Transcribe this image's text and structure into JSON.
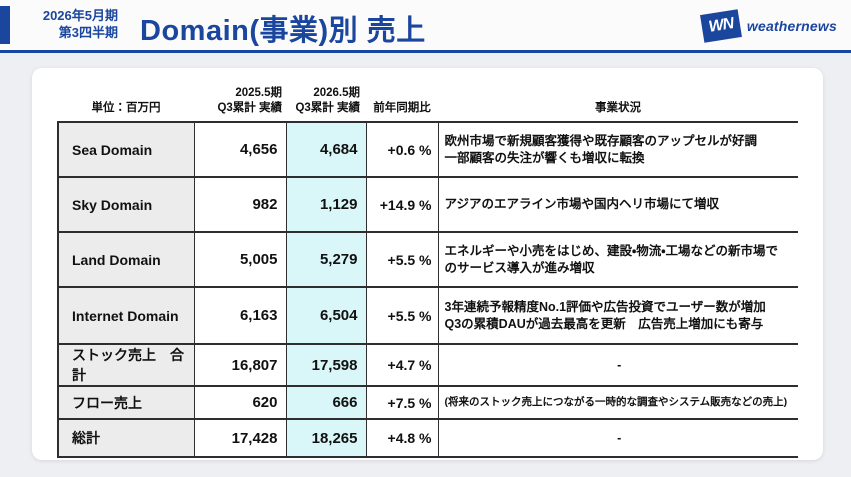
{
  "header": {
    "period_line1": "2026年5月期",
    "period_line2": "第3四半期",
    "title": "Domain(事業)別 売上",
    "logo_mark": "WN",
    "logo_text": "weathernews",
    "accent_color": "#1a469e"
  },
  "table": {
    "unit_label": "単位：百万円",
    "col_2025": "2025.5期\nQ3累計 実績",
    "col_2026": "2026.5期\nQ3累計 実績",
    "col_yoy": "前年同期比",
    "col_status": "事業状況",
    "highlight_color": "#d9f6f9",
    "rows": [
      {
        "label": "Sea Domain",
        "y2025": "4,656",
        "y2026": "4,684",
        "yoy": "+0.6 %",
        "status": "欧州市場で新規顧客獲得や既存顧客のアップセルが好調\n一部顧客の失注が響くも増収に転換"
      },
      {
        "label": "Sky Domain",
        "y2025": "982",
        "y2026": "1,129",
        "yoy": "+14.9 %",
        "status": "アジアのエアライン市場や国内ヘリ市場にて増収"
      },
      {
        "label": "Land Domain",
        "y2025": "5,005",
        "y2026": "5,279",
        "yoy": "+5.5 %",
        "status": "エネルギーや小売をはじめ、建設・物流・工場などの新市場で\nのサービス導入が進み増収"
      },
      {
        "label": "Internet Domain",
        "y2025": "6,163",
        "y2026": "6,504",
        "yoy": "+5.5 %",
        "status": "3年連続予報精度No.1評価や広告投資でユーザー数が増加\nQ3の累積DAUが過去最高を更新　広告売上増加にも寄与"
      },
      {
        "label": "ストック売上　合計",
        "y2025": "16,807",
        "y2026": "17,598",
        "yoy": "+4.7 %",
        "status": "-"
      },
      {
        "label": "フロー売上",
        "y2025": "620",
        "y2026": "666",
        "yoy": "+7.5 %",
        "status": "(将来のストック売上につながる一時的な調査やシステム販売などの売上)"
      },
      {
        "label": "総計",
        "y2025": "17,428",
        "y2026": "18,265",
        "yoy": "+4.8 %",
        "status": "-"
      }
    ]
  }
}
